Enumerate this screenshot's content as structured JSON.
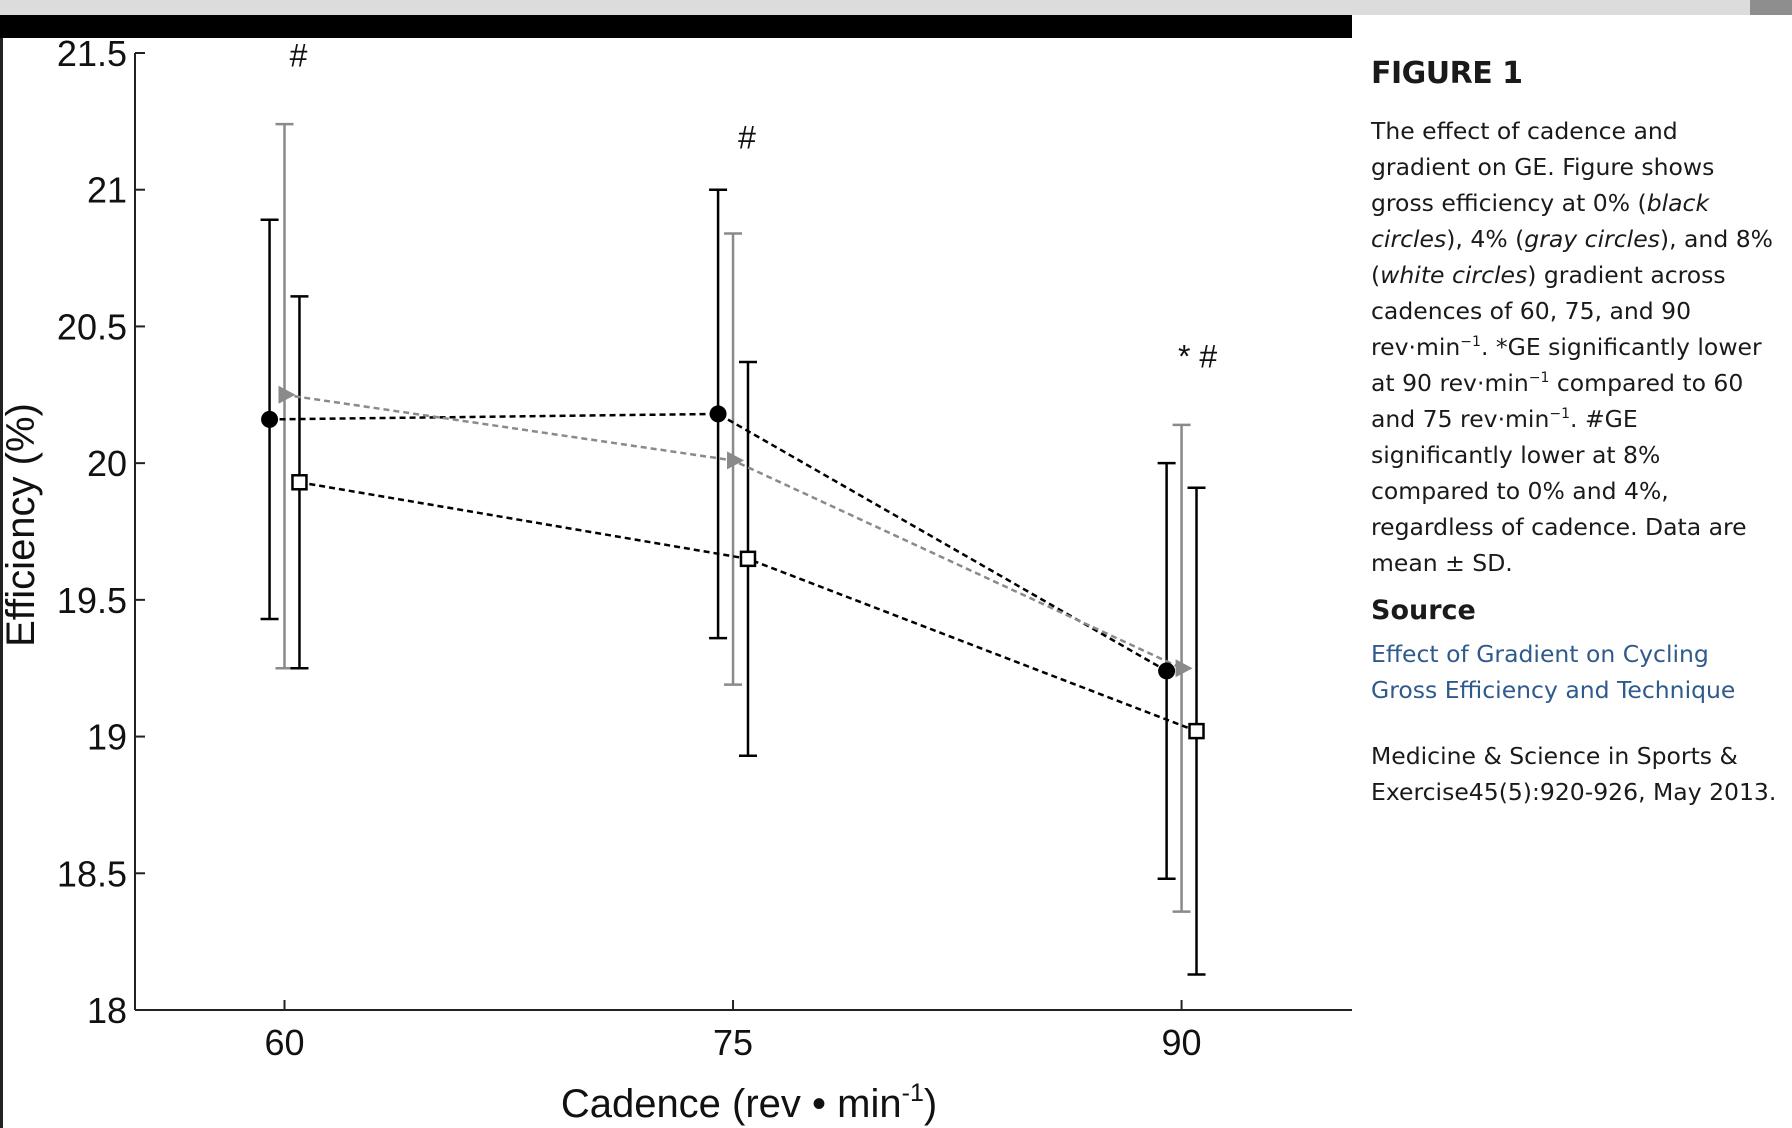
{
  "caption": {
    "figure_label": "FIGURE 1",
    "part1": "The effect of cadence and gradient on GE. Figure shows gross efficiency at 0% (",
    "black_circles": "black circles",
    "part2": "), 4% (",
    "gray_circles": "gray circles",
    "part3": "), and 8% (",
    "white_circles": "white circles",
    "part4": ") gradient across cadences of 60, 75, and 90 rev·min",
    "sup1": "−1",
    "part5": ". *GE significantly lower at 90 rev·min",
    "sup2": "−1",
    "part6": " compared to 60 and 75 rev·min",
    "sup3": "−1",
    "part7": ". #GE significantly lower at 8% compared to 0% and 4%, regardless of cadence. Data are mean ± SD.",
    "source_heading": "Source",
    "source_link": "Effect of Gradient on Cycling Gross Efficiency and Technique",
    "citation": "Medicine & Science in Sports & Exercise45(5):920-926, May 2013."
  },
  "chart_data": {
    "type": "line",
    "x": [
      60,
      75,
      90
    ],
    "xlabel": "Cadence (rev • min",
    "xlabel_sup": "-1",
    "xlabel_end": ")",
    "ylabel": "Efficiency (%)",
    "ylim": [
      18,
      21.5
    ],
    "yticks": [
      18,
      18.5,
      19,
      19.5,
      20,
      20.5,
      21,
      21.5
    ],
    "xticks": [
      60,
      75,
      90
    ],
    "series": [
      {
        "marker": "filled-circle",
        "color": "#000000",
        "offset": -0.5,
        "values": [
          20.16,
          20.18,
          19.24
        ],
        "sd_low": [
          19.43,
          19.36,
          18.48
        ],
        "sd_high": [
          20.89,
          21.0,
          20.0
        ]
      },
      {
        "marker": "triangle",
        "color": "#8a8a8a",
        "offset": 0,
        "values": [
          20.25,
          20.01,
          19.25
        ],
        "sd_low": [
          19.25,
          19.19,
          18.36
        ],
        "sd_high": [
          21.24,
          20.84,
          20.14
        ]
      },
      {
        "marker": "open-square",
        "color": "#000000",
        "offset": 0.5,
        "values": [
          19.93,
          19.65,
          19.02
        ],
        "sd_low": [
          19.25,
          18.93,
          18.13
        ],
        "sd_high": [
          20.61,
          20.37,
          19.91
        ]
      }
    ],
    "annotations": [
      {
        "x": 60,
        "y": 21.45,
        "text": "#"
      },
      {
        "x": 75,
        "y": 21.15,
        "text": "#"
      },
      {
        "x": 90,
        "y": 20.35,
        "text": "* #"
      }
    ]
  }
}
